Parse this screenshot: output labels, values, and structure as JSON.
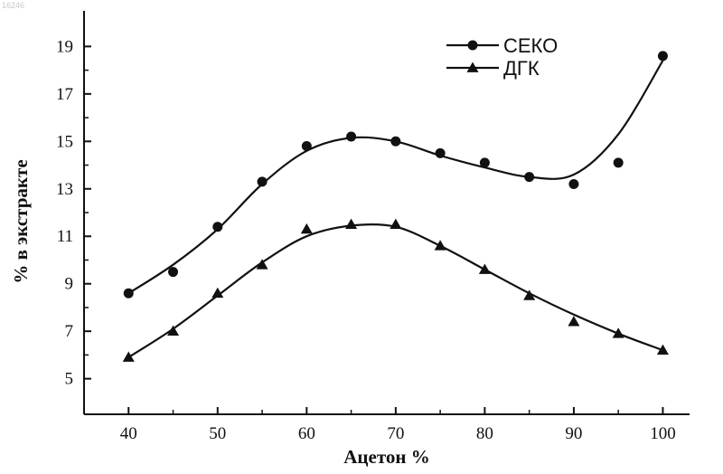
{
  "image_id": "16246",
  "chart_data": {
    "type": "line",
    "title": "",
    "xlabel": "Ацетон %",
    "ylabel": "% в экстракте",
    "xlim": [
      35,
      103
    ],
    "ylim": [
      3.5,
      20.5
    ],
    "xticks": [
      40,
      50,
      60,
      70,
      80,
      90,
      100
    ],
    "yticks": [
      5,
      7,
      9,
      11,
      13,
      15,
      17,
      19
    ],
    "grid": false,
    "legend_position": "top-right",
    "series": [
      {
        "name": "СЕКО",
        "marker": "circle",
        "x": [
          40,
          45,
          50,
          55,
          60,
          65,
          70,
          75,
          80,
          85,
          90,
          95,
          100
        ],
        "y": [
          8.6,
          9.5,
          11.4,
          13.3,
          14.8,
          15.2,
          15.0,
          14.5,
          14.1,
          13.5,
          13.2,
          14.1,
          18.6
        ],
        "curve_x": [
          40,
          45,
          50,
          55,
          60,
          65,
          70,
          75,
          80,
          85,
          90,
          95,
          100
        ],
        "curve_y": [
          8.6,
          9.8,
          11.3,
          13.2,
          14.6,
          15.15,
          15.0,
          14.4,
          13.9,
          13.5,
          13.6,
          15.3,
          18.4
        ]
      },
      {
        "name": "ДГК",
        "marker": "triangle",
        "x": [
          40,
          45,
          50,
          55,
          60,
          65,
          70,
          75,
          80,
          85,
          90,
          95,
          100
        ],
        "y": [
          5.9,
          7.0,
          8.6,
          9.8,
          11.3,
          11.5,
          11.5,
          10.6,
          9.6,
          8.5,
          7.4,
          6.9,
          6.2
        ],
        "curve_x": [
          40,
          45,
          50,
          55,
          60,
          65,
          70,
          75,
          80,
          85,
          90,
          95,
          100
        ],
        "curve_y": [
          5.9,
          7.1,
          8.5,
          9.9,
          11.0,
          11.45,
          11.4,
          10.6,
          9.6,
          8.6,
          7.7,
          6.9,
          6.2
        ]
      }
    ]
  }
}
